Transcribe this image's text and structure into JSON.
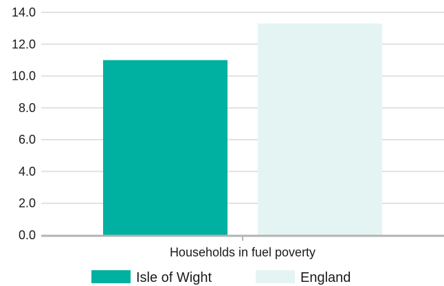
{
  "chart_data": {
    "type": "bar",
    "categories": [
      "Households in fuel poverty"
    ],
    "series": [
      {
        "name": "Isle of Wight",
        "values": [
          11.0
        ],
        "color": "#00b0a0"
      },
      {
        "name": "England",
        "values": [
          13.3
        ],
        "color": "#e3f4f3"
      }
    ],
    "y_ticks": [
      "0.0",
      "2.0",
      "4.0",
      "6.0",
      "8.0",
      "10.0",
      "12.0",
      "14.0"
    ],
    "ylim": [
      0,
      14
    ],
    "grid": true,
    "legend_position": "bottom",
    "colors": {
      "grid": "#e1e1e1",
      "axis": "#b3b3b3",
      "text": "#1a1a1a"
    }
  }
}
